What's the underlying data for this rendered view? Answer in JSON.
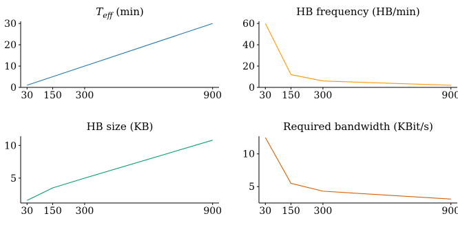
{
  "chart_data": [
    {
      "type": "line",
      "title": "T_eff (min)",
      "title_math": {
        "base": "T",
        "sub": "eff",
        "suffix": " (min)"
      },
      "x": [
        30,
        150,
        300,
        900
      ],
      "xticks": [
        30,
        150,
        300,
        900
      ],
      "yticks": [
        0,
        10,
        20,
        30
      ],
      "xlim": [
        0,
        930
      ],
      "ylim": [
        0,
        31
      ],
      "color": "#1f77b4",
      "series": [
        {
          "values": [
            1,
            5,
            10,
            30
          ]
        }
      ]
    },
    {
      "type": "line",
      "title": "HB frequency (HB/min)",
      "x": [
        30,
        150,
        300,
        900
      ],
      "xticks": [
        30,
        150,
        300,
        900
      ],
      "yticks": [
        0,
        20,
        40,
        60
      ],
      "xlim": [
        0,
        930
      ],
      "ylim": [
        0,
        62
      ],
      "color": "#ff9900",
      "series": [
        {
          "values": [
            60,
            12,
            6,
            2
          ]
        }
      ]
    },
    {
      "type": "line",
      "title": "HB size (KB)",
      "x": [
        30,
        150,
        300,
        900
      ],
      "xticks": [
        30,
        150,
        300,
        900
      ],
      "yticks": [
        5,
        10
      ],
      "xlim": [
        0,
        930
      ],
      "ylim": [
        1.2,
        11.4
      ],
      "color": "#009e73",
      "series": [
        {
          "values": [
            1.6,
            3.5,
            5.0,
            10.8
          ]
        }
      ]
    },
    {
      "type": "line",
      "title": "Required bandwidth (KBit/s)",
      "x": [
        30,
        150,
        300,
        900
      ],
      "xticks": [
        30,
        150,
        300,
        900
      ],
      "yticks": [
        5,
        10
      ],
      "xlim": [
        0,
        930
      ],
      "ylim": [
        2.5,
        12.7
      ],
      "color": "#d55e00",
      "series": [
        {
          "values": [
            12.5,
            5.5,
            4.3,
            3.1
          ]
        }
      ]
    }
  ]
}
